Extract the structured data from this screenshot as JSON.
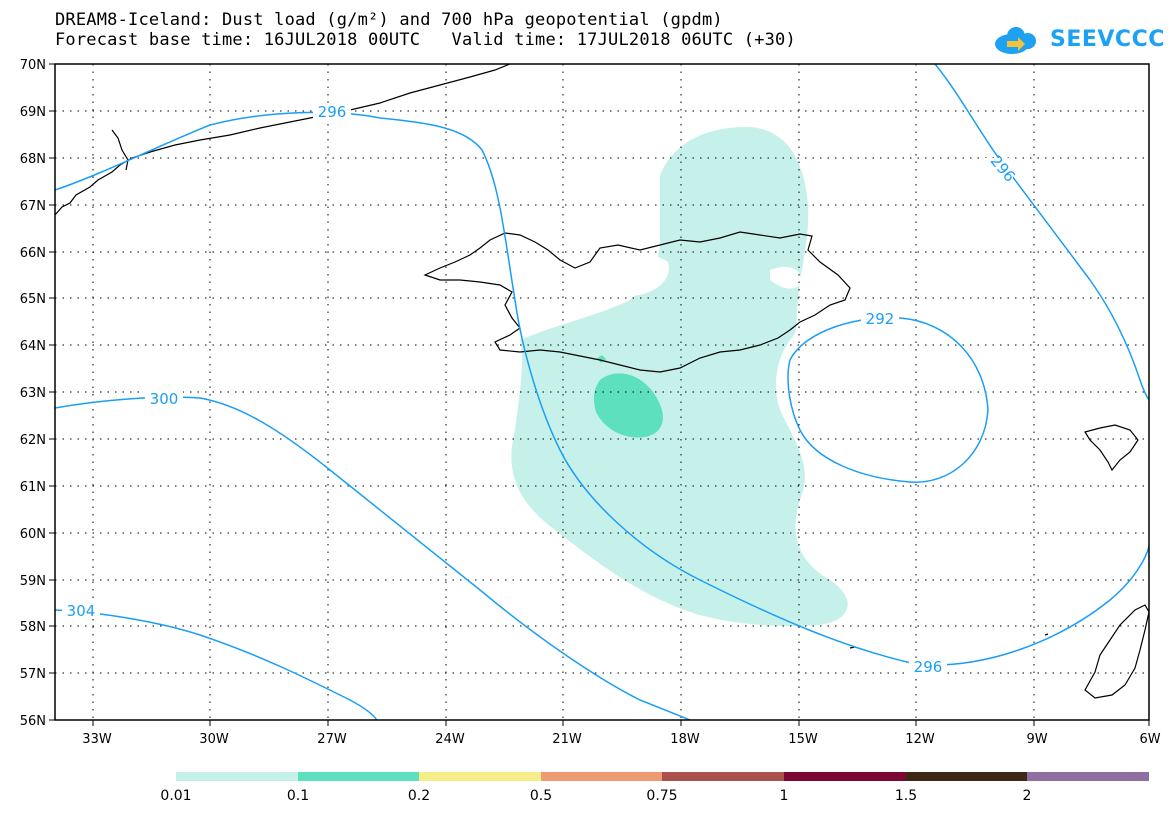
{
  "header": {
    "title": "DREAM8-Iceland: Dust load (g/m²) and 700 hPa geopotential (gpdm)",
    "subtitle": "Forecast base time: 16JUL2018 00UTC   Valid time: 17JUL2018 06UTC (+30)"
  },
  "logo": {
    "text": "SEEVCCC",
    "icon": "cloud-icon",
    "brand_color": "#1da1f2"
  },
  "map": {
    "lat_labels": [
      "70N",
      "69N",
      "68N",
      "67N",
      "66N",
      "65N",
      "64N",
      "63N",
      "62N",
      "61N",
      "60N",
      "59N",
      "58N",
      "57N",
      "56N"
    ],
    "lon_labels": [
      "33W",
      "30W",
      "27W",
      "24W",
      "21W",
      "18W",
      "15W",
      "12W",
      "9W",
      "6W"
    ],
    "contour_labels": [
      "296",
      "296",
      "292",
      "300",
      "304",
      "296"
    ],
    "contour_color": "#1a9ef5",
    "coast_color": "#000000"
  },
  "legend": {
    "labels": [
      "0.01",
      "0.1",
      "0.2",
      "0.5",
      "0.75",
      "1",
      "1.5",
      "2"
    ],
    "colors": [
      "#c6f1ea",
      "#5de0bd",
      "#f5ec8a",
      "#f09a74",
      "#a9514a",
      "#7c0733",
      "#3d2816",
      "#8f6fa2"
    ]
  }
}
